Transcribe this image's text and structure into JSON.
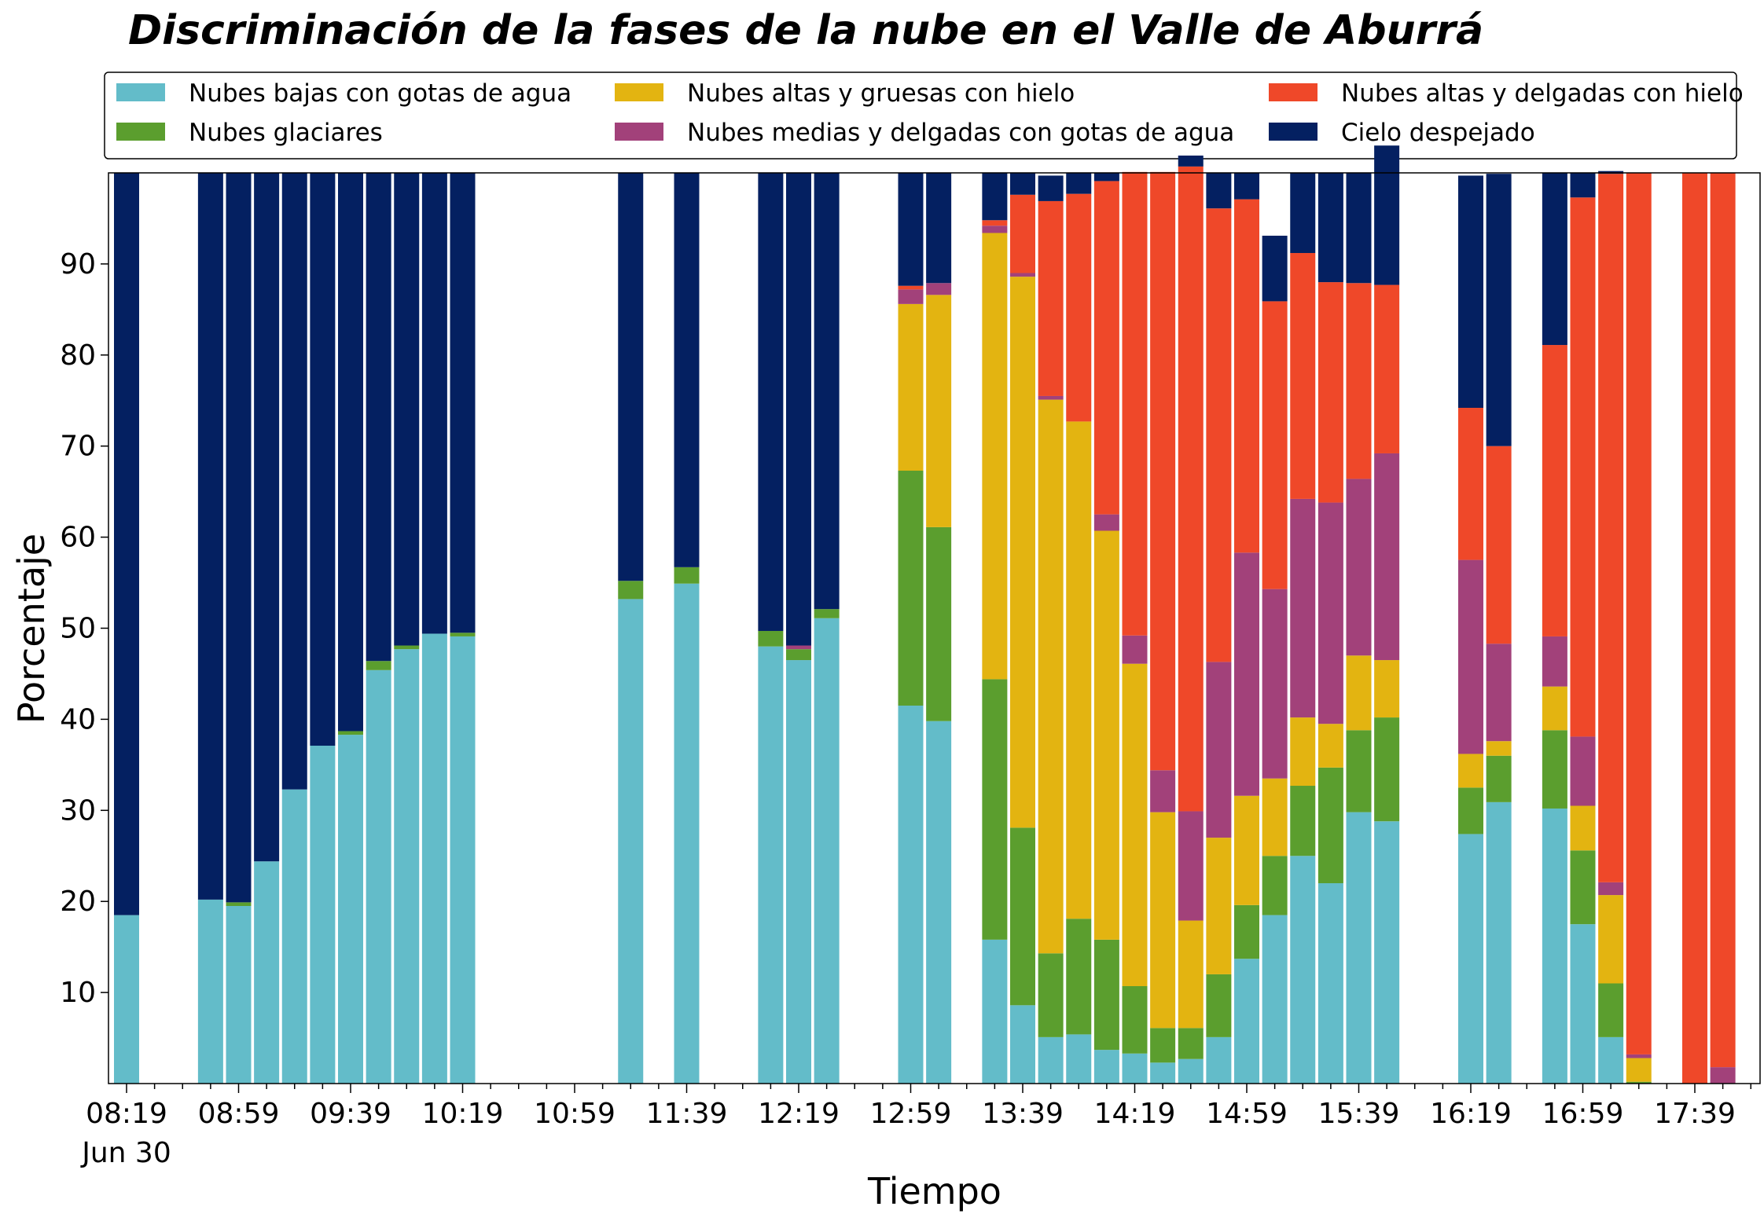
{
  "chart_data": {
    "type": "bar",
    "stacked": true,
    "title": "Discriminación de la fases de la nube en el Valle de Aburrá",
    "xlabel": "Tiempo",
    "ylabel": "Porcentaje",
    "ylim": [
      0,
      100
    ],
    "yticks": [
      10,
      20,
      30,
      40,
      50,
      60,
      70,
      80,
      90
    ],
    "x_tick_labels": [
      "08:19",
      "08:59",
      "09:39",
      "10:19",
      "10:59",
      "11:39",
      "12:19",
      "12:59",
      "13:39",
      "14:19",
      "14:59",
      "15:39",
      "16:19",
      "16:59",
      "17:39"
    ],
    "x_date_label": "Jun 30",
    "x_interval_minutes": 10,
    "grid": false,
    "legend_position": "top",
    "categories": [
      "08:19",
      "08:49",
      "08:59",
      "09:09",
      "09:19",
      "09:29",
      "09:39",
      "09:49",
      "09:59",
      "10:09",
      "10:19",
      "11:19",
      "11:39",
      "12:09",
      "12:19",
      "12:29",
      "12:59",
      "13:09",
      "13:29",
      "13:39",
      "13:49",
      "13:59",
      "14:09",
      "14:19",
      "14:29",
      "14:39",
      "14:49",
      "14:59",
      "15:09",
      "15:19",
      "15:29",
      "15:39",
      "15:49",
      "16:19",
      "16:29",
      "16:49",
      "16:59",
      "17:09",
      "17:19",
      "17:39",
      "17:49"
    ],
    "series": [
      {
        "name": "Nubes bajas con gotas de agua",
        "color": "#63bcc9",
        "values": [
          18.5,
          20.2,
          19.5,
          24.4,
          32.3,
          37.1,
          38.3,
          45.4,
          47.7,
          49.4,
          49.1,
          53.2,
          54.9,
          48.0,
          46.5,
          51.1,
          41.5,
          39.8,
          15.8,
          8.6,
          5.1,
          5.4,
          3.7,
          3.3,
          2.3,
          2.7,
          5.1,
          13.7,
          18.5,
          25.0,
          22.0,
          29.8,
          28.8,
          27.4,
          30.9,
          30.2,
          17.5,
          5.1,
          0.0,
          0.0,
          0.0
        ]
      },
      {
        "name": "Nubes glaciares",
        "color": "#5b9e2e",
        "values": [
          0,
          0,
          0.4,
          0,
          0,
          0,
          0.4,
          1.0,
          0.4,
          0,
          0.4,
          2.0,
          1.8,
          1.7,
          1.2,
          1.0,
          25.8,
          21.3,
          28.6,
          19.5,
          9.2,
          12.7,
          12.1,
          7.4,
          3.8,
          3.4,
          6.9,
          5.9,
          6.5,
          7.7,
          12.7,
          9.0,
          11.4,
          5.1,
          5.1,
          8.6,
          8.1,
          5.9,
          0.2,
          0.0,
          0.0
        ]
      },
      {
        "name": "Nubes altas y gruesas con hielo",
        "color": "#e3b411",
        "values": [
          0,
          0,
          0,
          0,
          0,
          0,
          0,
          0,
          0,
          0,
          0,
          0,
          0,
          0,
          0,
          0,
          18.3,
          25.5,
          49.0,
          60.5,
          60.8,
          54.6,
          44.9,
          35.4,
          23.7,
          11.8,
          15.0,
          12.0,
          8.5,
          7.5,
          4.8,
          8.2,
          6.3,
          3.7,
          1.6,
          4.8,
          4.9,
          9.7,
          2.6,
          0.0,
          0.0
        ]
      },
      {
        "name": "Nubes medias y delgadas con gotas de agua",
        "color": "#a2417a",
        "values": [
          0,
          0,
          0,
          0,
          0,
          0,
          0,
          0,
          0,
          0,
          0,
          0,
          0,
          0,
          0.4,
          0,
          1.6,
          1.3,
          0.8,
          0.4,
          0.4,
          0,
          1.8,
          3.1,
          4.6,
          12.0,
          19.3,
          26.7,
          20.8,
          24.0,
          24.3,
          19.4,
          22.7,
          21.3,
          10.7,
          5.5,
          7.6,
          1.4,
          0.4,
          0.0,
          1.8
        ]
      },
      {
        "name": "Nubes altas y delgadas con hielo",
        "color": "#ef4829",
        "values": [
          0,
          0,
          0,
          0,
          0,
          0,
          0,
          0,
          0,
          0,
          0,
          0,
          0,
          0,
          0,
          0,
          0.4,
          0,
          0.6,
          8.6,
          21.4,
          25.0,
          36.6,
          50.9,
          65.7,
          70.8,
          49.8,
          38.8,
          31.6,
          27.0,
          24.2,
          21.5,
          18.5,
          16.7,
          21.7,
          32.0,
          59.2,
          77.8,
          96.8,
          100.0,
          98.2
        ]
      },
      {
        "name": "Cielo despejado",
        "color": "#042061",
        "values": [
          81.5,
          79.8,
          80.1,
          75.6,
          67.7,
          62.9,
          61.3,
          53.6,
          51.9,
          50.6,
          50.5,
          44.8,
          43.3,
          50.3,
          51.9,
          47.9,
          12.4,
          12.1,
          5.2,
          2.4,
          2.8,
          2.3,
          0.9,
          0.0,
          0.0,
          1.2,
          3.9,
          2.9,
          7.2,
          8.8,
          12.0,
          12.1,
          15.3,
          25.5,
          29.9,
          18.9,
          2.7,
          0.3,
          0.0,
          0.0,
          0.0
        ]
      }
    ]
  }
}
